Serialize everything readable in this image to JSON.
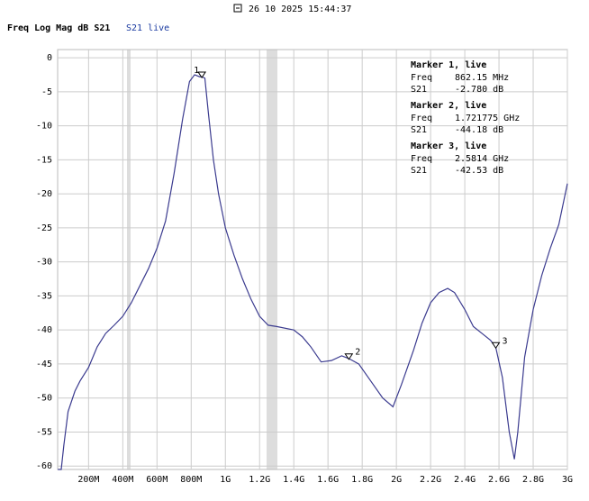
{
  "header": {
    "timestamp": "26 10 2025 15:44:37",
    "mode": "Freq Log Mag dB S21",
    "trace": "S21 live"
  },
  "chart_data": {
    "type": "line",
    "xlim": [
      19,
      3000
    ],
    "ylim": [
      -60.5,
      1.2
    ],
    "xticks": [
      {
        "value": 200,
        "label": "200M"
      },
      {
        "value": 400,
        "label": "400M"
      },
      {
        "value": 600,
        "label": "600M"
      },
      {
        "value": 800,
        "label": "800M"
      },
      {
        "value": 1000,
        "label": "1G"
      },
      {
        "value": 1200,
        "label": "1.2G"
      },
      {
        "value": 1400,
        "label": "1.4G"
      },
      {
        "value": 1600,
        "label": "1.6G"
      },
      {
        "value": 1800,
        "label": "1.8G"
      },
      {
        "value": 2000,
        "label": "2G"
      },
      {
        "value": 2200,
        "label": "2.2G"
      },
      {
        "value": 2400,
        "label": "2.4G"
      },
      {
        "value": 2600,
        "label": "2.6G"
      },
      {
        "value": 2800,
        "label": "2.8G"
      },
      {
        "value": 3000,
        "label": "3G"
      }
    ],
    "yticks": [
      0,
      -5,
      -10,
      -15,
      -20,
      -25,
      -30,
      -35,
      -40,
      -45,
      -50,
      -55,
      -60
    ],
    "grid": true,
    "x": [
      20,
      40,
      55,
      80,
      120,
      150,
      200,
      250,
      300,
      350,
      400,
      450,
      500,
      550,
      600,
      650,
      700,
      750,
      790,
      820,
      850,
      862,
      880,
      900,
      930,
      960,
      1000,
      1050,
      1100,
      1150,
      1200,
      1250,
      1300,
      1400,
      1450,
      1500,
      1560,
      1620,
      1680,
      1722,
      1780,
      1850,
      1920,
      1980,
      2030,
      2100,
      2150,
      2200,
      2250,
      2300,
      2340,
      2400,
      2450,
      2500,
      2550,
      2581,
      2620,
      2660,
      2690,
      2710,
      2750,
      2800,
      2850,
      2900,
      2950,
      3000
    ],
    "series": [
      {
        "name": "S21",
        "color": "#3b3b8f",
        "values": [
          -60.5,
          -60.5,
          -57,
          -52,
          -49,
          -47.5,
          -45.5,
          -42.5,
          -40.5,
          -39.3,
          -38,
          -36,
          -33.5,
          -31,
          -28,
          -24,
          -17,
          -9,
          -3.5,
          -2.5,
          -2.8,
          -2.78,
          -3,
          -8,
          -15,
          -20,
          -25,
          -29,
          -32.5,
          -35.5,
          -38,
          -39.3,
          -39.5,
          -40,
          -41,
          -42.5,
          -44.7,
          -44.5,
          -43.8,
          -44.2,
          -45,
          -47.5,
          -50,
          -51.3,
          -48,
          -43,
          -39,
          -36,
          -34.5,
          -33.9,
          -34.5,
          -37,
          -39.5,
          -40.5,
          -41.5,
          -42.53,
          -47,
          -55,
          -59,
          -55,
          -44,
          -37,
          -32,
          -28,
          -24.5,
          -18.5
        ]
      }
    ],
    "markers": [
      {
        "label": "1",
        "x": 862.15,
        "y": -2.78
      },
      {
        "label": "2",
        "x": 1721.775,
        "y": -44.18
      },
      {
        "label": "3",
        "x": 2581.4,
        "y": -42.53
      }
    ],
    "readouts": [
      {
        "title": "Marker 1, live",
        "freq_label": "Freq",
        "freq": "862.15 MHz",
        "s21_label": "S21",
        "s21": "-2.780 dB"
      },
      {
        "title": "Marker 2, live",
        "freq_label": "Freq",
        "freq": "1.721775 GHz",
        "s21_label": "S21",
        "s21": "-44.18 dB"
      },
      {
        "title": "Marker 3, live",
        "freq_label": "Freq",
        "freq": "2.5814 GHz",
        "s21_label": "S21",
        "s21": "-42.53 dB"
      }
    ]
  }
}
